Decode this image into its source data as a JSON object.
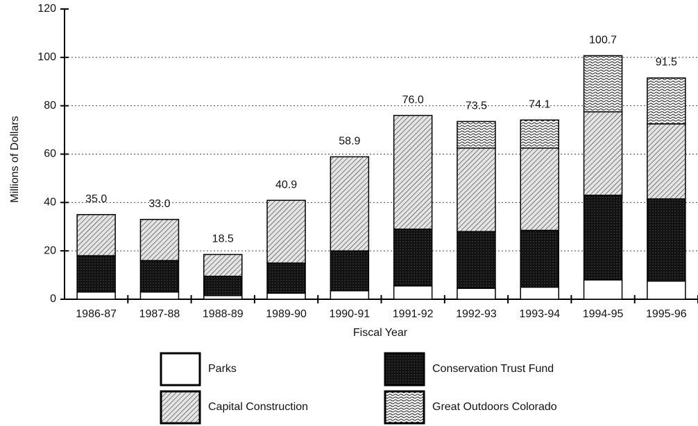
{
  "chart_data": {
    "type": "stacked_bar",
    "y_label": "Millions of Dollars",
    "x_label": "Fiscal Year",
    "categories": [
      "1986-87",
      "1987-88",
      "1988-89",
      "1989-90",
      "1990-91",
      "1991-92",
      "1992-93",
      "1993-94",
      "1994-95",
      "1995-96"
    ],
    "series": [
      {
        "name": "Parks",
        "color": "#ffffff",
        "values": [
          3,
          3,
          1.5,
          2.5,
          3.5,
          5.5,
          4.5,
          5,
          8,
          7.5
        ]
      },
      {
        "name": "Conservation Trust Fund",
        "color": "#111111",
        "values": [
          15,
          13,
          8,
          12.5,
          16.5,
          23.5,
          23.5,
          23.5,
          35,
          34
        ]
      },
      {
        "name": "Capital Construction",
        "color": "#d8d8d8",
        "values": [
          17,
          17,
          9,
          25.9,
          38.9,
          47,
          34.5,
          34,
          34.5,
          31
        ]
      },
      {
        "name": "Great Outdoors Colorado",
        "color": "#eeeeee",
        "values": [
          0,
          0,
          0,
          0,
          0,
          0,
          11,
          11.6,
          23.2,
          19
        ]
      }
    ],
    "total_labels": [
      "35.0",
      "33.0",
      "18.5",
      "40.9",
      "58.9",
      "76.0",
      "73.5",
      "74.1",
      "100.7",
      "91.5"
    ],
    "ylim": [
      0,
      120
    ],
    "yticks": [
      0,
      20,
      40,
      60,
      80,
      100,
      120
    ],
    "grid": true
  }
}
